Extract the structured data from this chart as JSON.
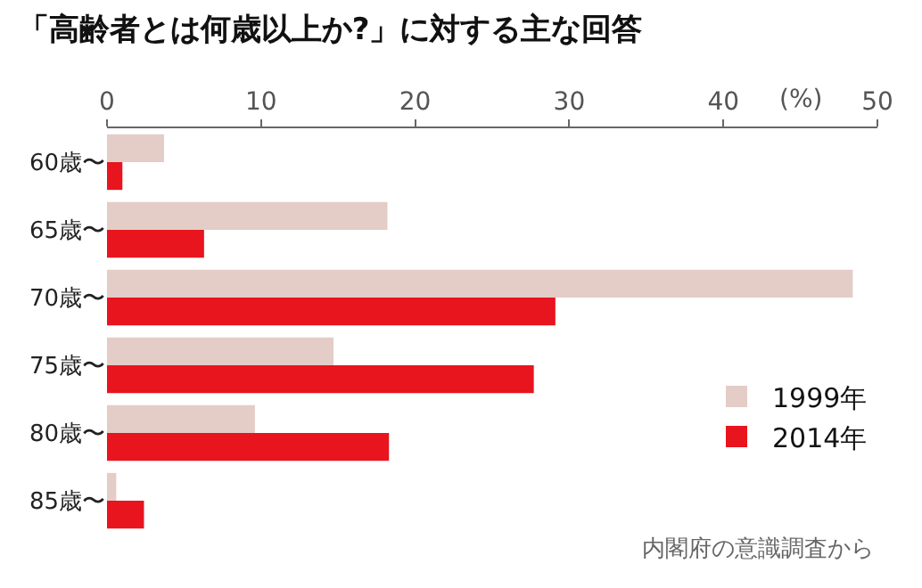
{
  "chart_data": {
    "type": "bar",
    "orientation": "horizontal",
    "title": "「高齢者とは何歳以上か?」に対する主な回答",
    "xlabel": "(%)",
    "categories": [
      "60歳〜",
      "65歳〜",
      "70歳〜",
      "75歳〜",
      "80歳〜",
      "85歳〜"
    ],
    "series": [
      {
        "name": "1999年",
        "color": "#e3cdc6",
        "values": [
          3.7,
          18.2,
          48.4,
          14.7,
          9.6,
          0.6
        ]
      },
      {
        "name": "2014年",
        "color": "#e8141e",
        "values": [
          1.0,
          6.3,
          29.1,
          27.7,
          18.3,
          2.4
        ]
      }
    ],
    "xlim": [
      0,
      50
    ],
    "xticks": [
      0,
      10,
      20,
      30,
      40,
      50
    ],
    "legend": "bottom right",
    "annotations": [
      "内閣府の意識調査から"
    ]
  }
}
